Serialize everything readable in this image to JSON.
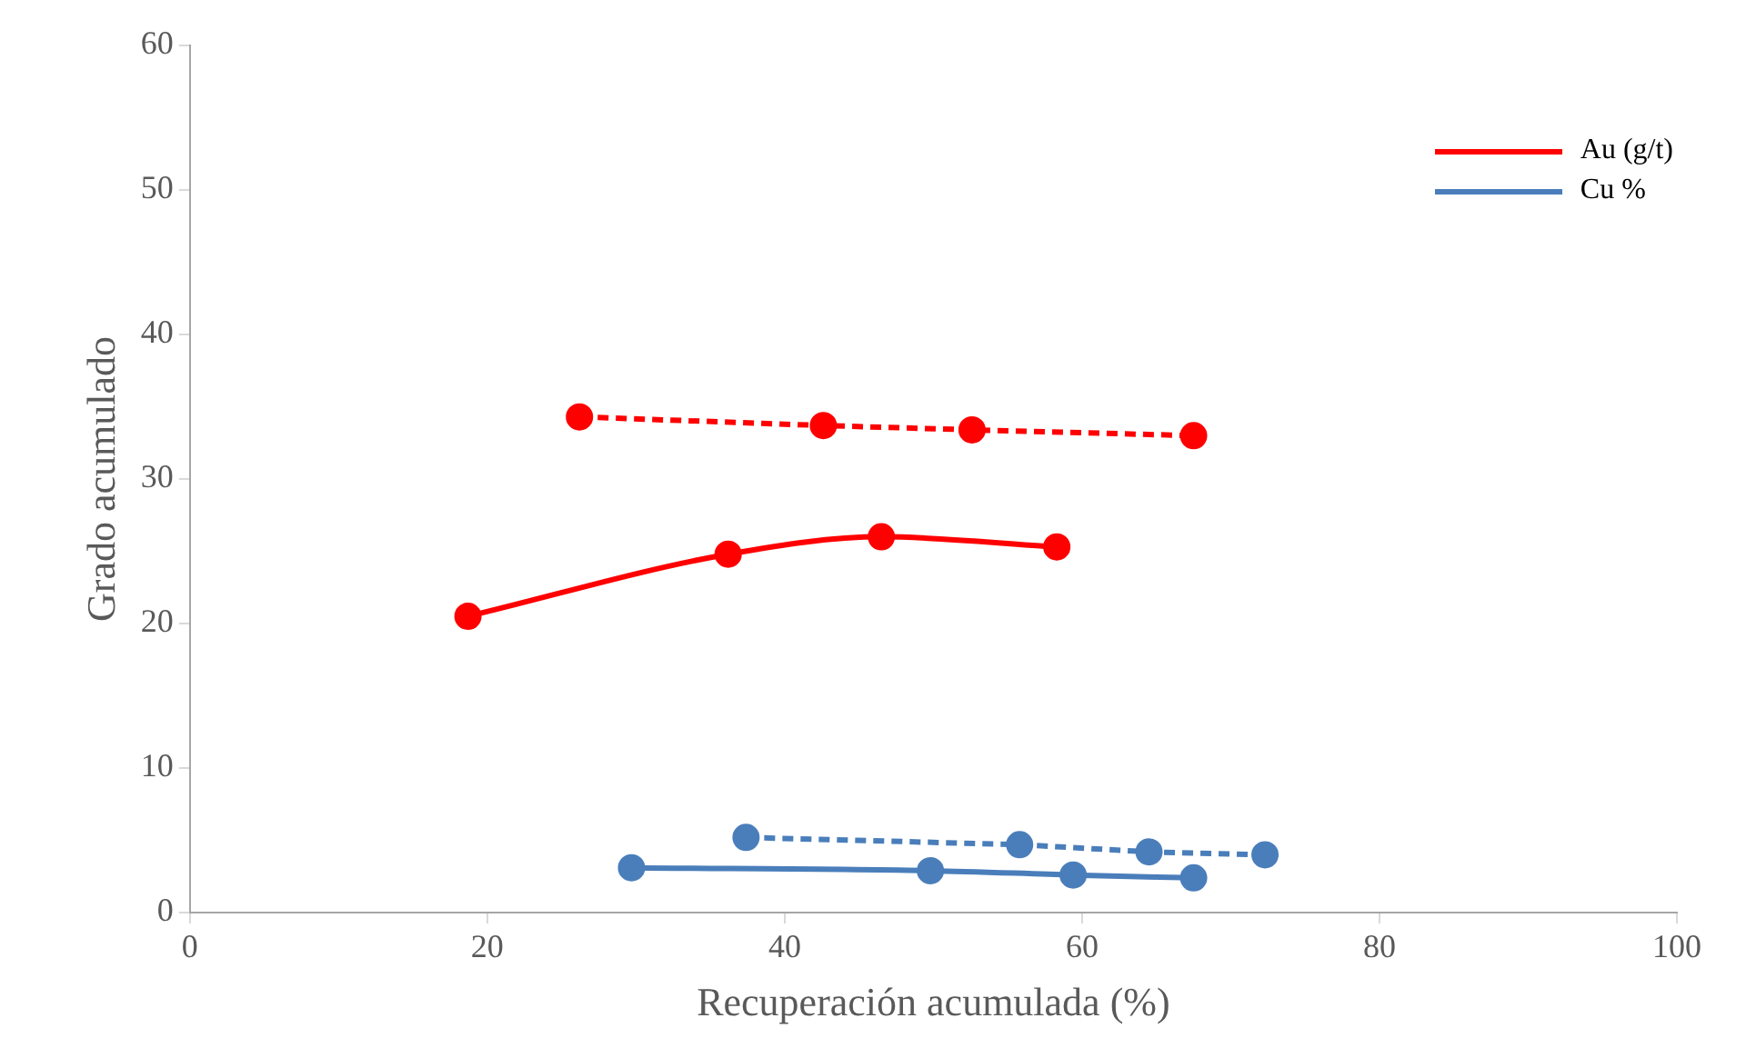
{
  "chart_data": {
    "type": "line",
    "xlabel": "Recuperación acumulada (%)",
    "ylabel": "Grado acumulado",
    "xlim": [
      0,
      100
    ],
    "xticks": [
      0,
      20,
      40,
      60,
      80,
      100
    ],
    "ylim": [
      0,
      60
    ],
    "yticks": [
      0,
      10,
      20,
      30,
      40,
      50,
      60
    ],
    "grid": false,
    "legend": "top right",
    "marker": "circle",
    "series": [
      {
        "name": "Au (g/t)",
        "color": "#ff0000",
        "line_style": "solid",
        "x": [
          18.7,
          36.2,
          46.5,
          58.3
        ],
        "values": [
          20.5,
          24.8,
          26.0,
          25.3
        ]
      },
      {
        "color": "#ff0000",
        "line_style": "dashed",
        "x": [
          26.2,
          42.6,
          52.6,
          67.5
        ],
        "values": [
          34.3,
          33.7,
          33.4,
          33.0
        ]
      },
      {
        "name": "Cu %",
        "color": "#4a7ebb",
        "line_style": "solid",
        "x": [
          29.7,
          49.8,
          59.4,
          67.5
        ],
        "values": [
          3.1,
          2.9,
          2.6,
          2.4
        ]
      },
      {
        "color": "#4a7ebb",
        "line_style": "dashed",
        "x": [
          37.4,
          55.8,
          64.5,
          72.3
        ],
        "values": [
          5.2,
          4.7,
          4.2,
          4.0
        ]
      }
    ]
  }
}
